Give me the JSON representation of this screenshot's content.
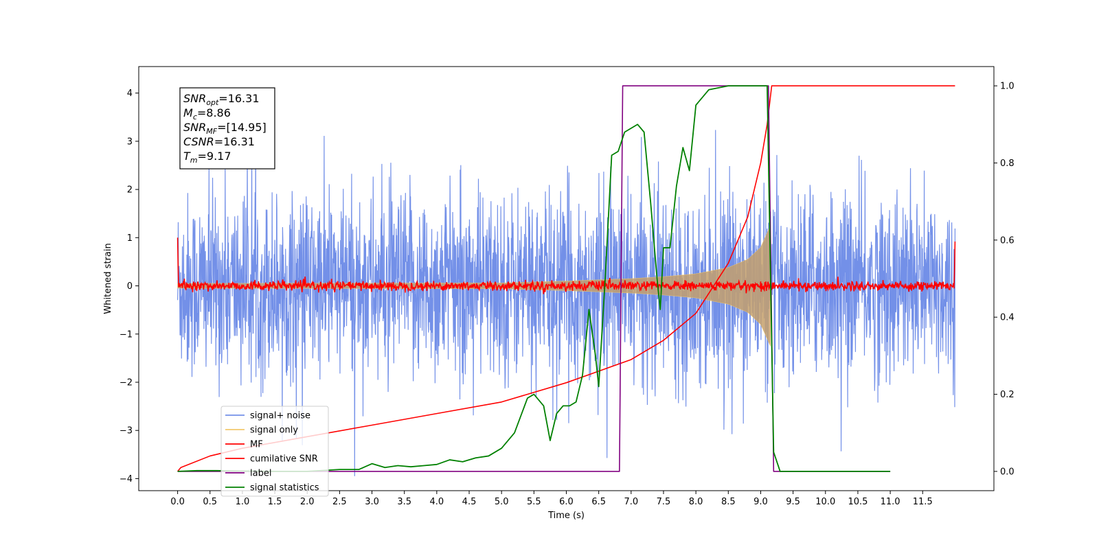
{
  "chart_data": {
    "type": "line",
    "xlabel": "Time (s)",
    "ylabel": "Whitened strain",
    "xlim": [
      -0.6,
      12.6
    ],
    "ylim": [
      -4.25,
      4.55
    ],
    "ylim_right": [
      -0.05,
      1.05
    ],
    "x_ticks": [
      0.0,
      0.5,
      1.0,
      1.5,
      2.0,
      2.5,
      3.0,
      3.5,
      4.0,
      4.5,
      5.0,
      5.5,
      6.0,
      6.5,
      7.0,
      7.5,
      8.0,
      8.5,
      9.0,
      9.5,
      10.0,
      10.5,
      11.0,
      11.5
    ],
    "x_tick_labels": [
      "0.0",
      "0.5",
      "1.0",
      "1.5",
      "2.0",
      "2.5",
      "3.0",
      "3.5",
      "4.0",
      "4.5",
      "5.0",
      "5.5",
      "6.0",
      "6.5",
      "7.0",
      "7.5",
      "8.0",
      "8.5",
      "9.0",
      "9.5",
      "10.0",
      "10.5",
      "11.0",
      "11.5"
    ],
    "y_ticks": [
      -4,
      -3,
      -2,
      -1,
      0,
      1,
      2,
      3,
      4
    ],
    "y_tick_labels": [
      "−4",
      "−3",
      "−2",
      "−1",
      "0",
      "1",
      "2",
      "3",
      "4"
    ],
    "y_right_ticks": [
      0.0,
      0.2,
      0.4,
      0.6,
      0.8,
      1.0
    ],
    "y_right_tick_labels": [
      "0.0",
      "0.2",
      "0.4",
      "0.6",
      "0.8",
      "1.0"
    ],
    "grid": false,
    "legend_position": "lower-left",
    "stats_box": {
      "position": "top-left",
      "lines": [
        {
          "main": "SNR",
          "sub": "opt",
          "value": "=16.31"
        },
        {
          "main": "M",
          "sub": "c",
          "value": "=8.86"
        },
        {
          "main": "SNR",
          "sub": "MF",
          "value": "=[14.95]"
        },
        {
          "main": "CSNR",
          "sub": "",
          "value": "=16.31"
        },
        {
          "main": "T",
          "sub": "m",
          "value": "=9.17"
        }
      ]
    },
    "series": [
      {
        "name": "signal+ noise",
        "axis": "left",
        "color": "#7390e8",
        "style": "dense noise, amplitude about ±2.5 with spikes to ±4, x 0 to 12"
      },
      {
        "name": "signal only",
        "axis": "left",
        "color": "#f2c86b",
        "envelope": {
          "x": [
            0.0,
            5.0,
            6.0,
            7.0,
            7.5,
            8.0,
            8.5,
            8.8,
            9.0,
            9.1,
            9.15
          ],
          "y": [
            0.05,
            0.06,
            0.1,
            0.15,
            0.19,
            0.25,
            0.38,
            0.55,
            0.8,
            1.1,
            1.25
          ]
        }
      },
      {
        "name": "MF",
        "axis": "left",
        "color": "#ff0000",
        "style": "noise around 0 with amplitude about ±0.15, spikes near 1.0 at x=0 and x=12"
      },
      {
        "name": "cumilative SNR",
        "axis": "right",
        "color": "#ff0000",
        "x": [
          0.0,
          0.05,
          0.5,
          1.0,
          2.0,
          3.0,
          4.0,
          5.0,
          6.0,
          6.5,
          7.0,
          7.5,
          8.0,
          8.5,
          8.8,
          9.0,
          9.1,
          9.17,
          12.0
        ],
        "y": [
          0.0,
          0.01,
          0.04,
          0.06,
          0.09,
          0.12,
          0.15,
          0.18,
          0.23,
          0.26,
          0.29,
          0.34,
          0.41,
          0.54,
          0.66,
          0.8,
          0.9,
          1.0,
          1.0
        ]
      },
      {
        "name": "label",
        "axis": "right",
        "color": "#800080",
        "x": [
          0.0,
          6.82,
          6.87,
          9.12,
          9.2,
          11.0
        ],
        "y": [
          0.0,
          0.0,
          1.0,
          1.0,
          0.0,
          0.0
        ]
      },
      {
        "name": "signal statistics",
        "axis": "right",
        "color": "#008000",
        "x": [
          0.0,
          0.3,
          0.6,
          1.0,
          1.5,
          2.0,
          2.5,
          2.8,
          3.0,
          3.2,
          3.4,
          3.6,
          3.8,
          4.0,
          4.2,
          4.4,
          4.6,
          4.8,
          5.0,
          5.2,
          5.4,
          5.5,
          5.65,
          5.75,
          5.85,
          5.95,
          6.05,
          6.15,
          6.25,
          6.35,
          6.45,
          6.5,
          6.6,
          6.7,
          6.8,
          6.9,
          7.0,
          7.1,
          7.2,
          7.3,
          7.4,
          7.45,
          7.5,
          7.6,
          7.7,
          7.8,
          7.9,
          8.0,
          8.2,
          8.5,
          8.8,
          9.1,
          9.2,
          9.3,
          11.0
        ],
        "y": [
          0.0,
          0.002,
          0.002,
          0.001,
          0.0,
          0.0,
          0.005,
          0.005,
          0.02,
          0.01,
          0.015,
          0.012,
          0.015,
          0.018,
          0.03,
          0.025,
          0.035,
          0.04,
          0.06,
          0.1,
          0.19,
          0.2,
          0.17,
          0.08,
          0.15,
          0.17,
          0.17,
          0.18,
          0.25,
          0.42,
          0.3,
          0.22,
          0.5,
          0.82,
          0.83,
          0.88,
          0.89,
          0.9,
          0.88,
          0.7,
          0.5,
          0.42,
          0.58,
          0.58,
          0.74,
          0.84,
          0.78,
          0.95,
          0.99,
          1.0,
          1.0,
          1.0,
          0.05,
          0.0,
          0.0
        ]
      }
    ]
  }
}
